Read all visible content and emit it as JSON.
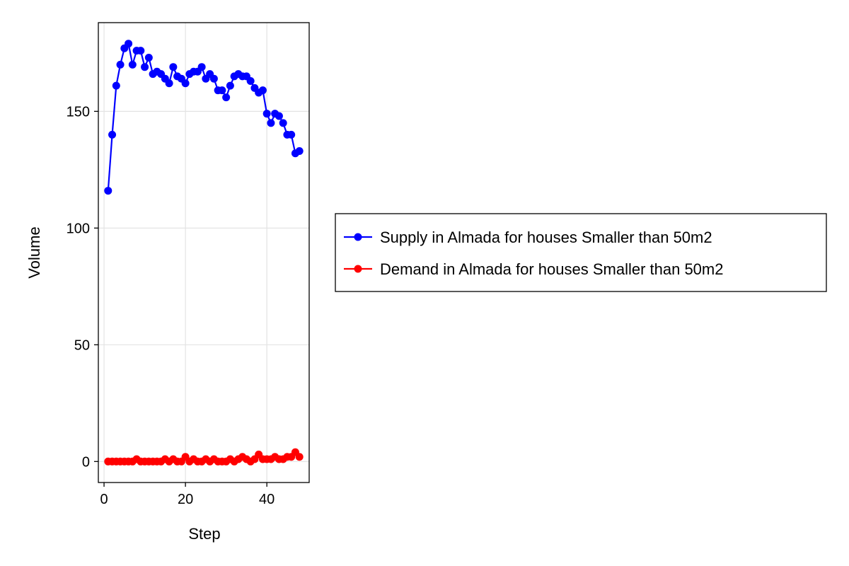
{
  "chart_data": {
    "type": "line",
    "xlabel": "Step",
    "ylabel": "Volume",
    "xlim": [
      -1.4,
      50.4
    ],
    "ylim": [
      -9,
      188
    ],
    "xticks": [
      0,
      20,
      40
    ],
    "yticks": [
      0,
      50,
      100,
      150
    ],
    "xtick_labels": [
      "0",
      "20",
      "40"
    ],
    "ytick_labels": [
      "0",
      "50",
      "100",
      "150"
    ],
    "grid": true,
    "legend_position": "right",
    "x": [
      1,
      2,
      3,
      4,
      5,
      6,
      7,
      8,
      9,
      10,
      11,
      12,
      13,
      14,
      15,
      16,
      17,
      18,
      19,
      20,
      21,
      22,
      23,
      24,
      25,
      26,
      27,
      28,
      29,
      30,
      31,
      32,
      33,
      34,
      35,
      36,
      37,
      38,
      39,
      40,
      41,
      42,
      43,
      44,
      45,
      46,
      47,
      48
    ],
    "series": [
      {
        "name": "Supply in Almada for houses Smaller than 50m2",
        "color": "#0000ff",
        "values": [
          116,
          140,
          161,
          170,
          177,
          179,
          170,
          176,
          176,
          169,
          173,
          166,
          167,
          166,
          164,
          162,
          169,
          165,
          164,
          162,
          166,
          167,
          167,
          169,
          164,
          166,
          164,
          159,
          159,
          156,
          161,
          165,
          166,
          165,
          165,
          163,
          160,
          158,
          159,
          149,
          145,
          149,
          148,
          145,
          140,
          140,
          132,
          133
        ]
      },
      {
        "name": "Demand in Almada for houses Smaller than 50m2",
        "color": "#ff0000",
        "values": [
          0,
          0,
          0,
          0,
          0,
          0,
          0,
          1,
          0,
          0,
          0,
          0,
          0,
          0,
          1,
          0,
          1,
          0,
          0,
          2,
          0,
          1,
          0,
          0,
          1,
          0,
          1,
          0,
          0,
          0,
          1,
          0,
          1,
          2,
          1,
          0,
          1,
          3,
          1,
          1,
          1,
          2,
          1,
          1,
          2,
          2,
          4,
          2
        ]
      }
    ]
  }
}
